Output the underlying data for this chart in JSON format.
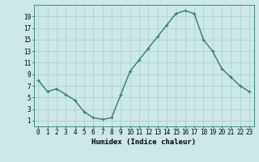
{
  "x": [
    0,
    1,
    2,
    3,
    4,
    5,
    6,
    7,
    8,
    9,
    10,
    11,
    12,
    13,
    14,
    15,
    16,
    17,
    18,
    19,
    20,
    21,
    22,
    23
  ],
  "y": [
    8,
    6,
    6.5,
    5.5,
    4.5,
    2.5,
    1.5,
    1.2,
    1.5,
    5.5,
    9.5,
    11.5,
    13.5,
    15.5,
    17.5,
    19.5,
    20,
    19.5,
    15,
    13,
    10,
    8.5,
    7,
    6
  ],
  "line_color": "#2e7d6e",
  "marker_color": "#2e7d6e",
  "bg_color": "#cce8e8",
  "grid_color": "#aacccc",
  "xlabel": "Humidex (Indice chaleur)",
  "ylim": [
    0,
    21
  ],
  "xlim": [
    -0.5,
    23.5
  ],
  "yticks": [
    1,
    3,
    5,
    7,
    9,
    11,
    13,
    15,
    17,
    19
  ],
  "xticks": [
    0,
    1,
    2,
    3,
    4,
    5,
    6,
    7,
    8,
    9,
    10,
    11,
    12,
    13,
    14,
    15,
    16,
    17,
    18,
    19,
    20,
    21,
    22,
    23
  ],
  "xlabel_fontsize": 6.5,
  "tick_fontsize": 5.5,
  "linewidth": 1.0,
  "markersize": 2.5,
  "marker": "+"
}
